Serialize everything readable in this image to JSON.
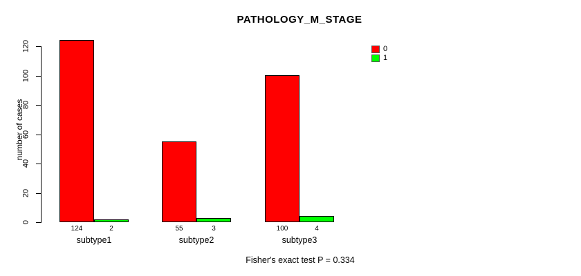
{
  "chart_data": {
    "type": "bar",
    "title": "PATHOLOGY_M_STAGE",
    "ylabel": "number of cases",
    "xlabel": "",
    "categories": [
      "subtype1",
      "subtype2",
      "subtype3"
    ],
    "series": [
      {
        "name": "0",
        "color": "#ff0000",
        "values": [
          124,
          55,
          100
        ]
      },
      {
        "name": "1",
        "color": "#00ff00",
        "values": [
          2,
          3,
          4
        ]
      }
    ],
    "bar_value_labels": [
      [
        124,
        2
      ],
      [
        55,
        3
      ],
      [
        100,
        4
      ]
    ],
    "ylim": [
      0,
      120
    ],
    "yticks": [
      0,
      20,
      40,
      60,
      80,
      100,
      120
    ],
    "grid": false,
    "legend_position": "top-right",
    "annotation": "Fisher's exact test P = 0.334"
  }
}
